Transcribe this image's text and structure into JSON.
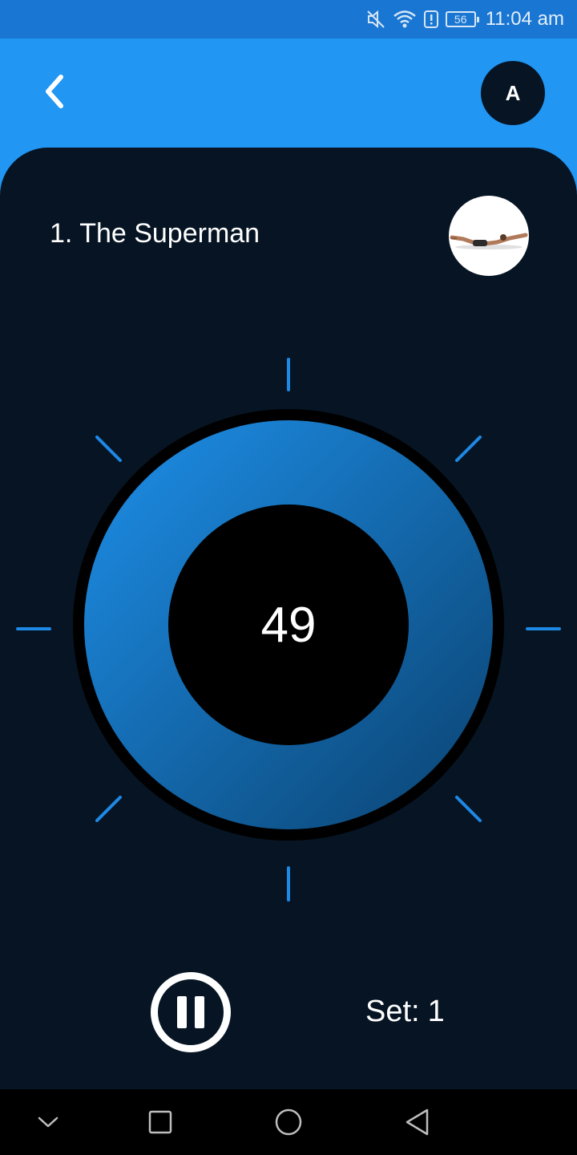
{
  "status_bar": {
    "time": "11:04 am",
    "battery": "56",
    "icons": [
      "mute-icon",
      "wifi-icon",
      "alert-icon",
      "battery-icon"
    ]
  },
  "app_bar": {
    "back_icon": "chevron-left-icon",
    "avatar_initial": "A"
  },
  "exercise": {
    "title": "1. The Superman",
    "thumbnail_icon": "superman-exercise-image"
  },
  "timer": {
    "countdown": "49"
  },
  "controls": {
    "pause_icon": "pause-icon",
    "set_label": "Set:",
    "set_value": "1"
  },
  "nav_bar": {
    "icons": [
      "chevron-down-icon",
      "square-icon",
      "circle-icon",
      "triangle-back-icon"
    ]
  },
  "colors": {
    "app_bar": "#2196f3",
    "status_bar": "#1976d2",
    "panel": "#061423",
    "accent": "#1e88e5"
  }
}
